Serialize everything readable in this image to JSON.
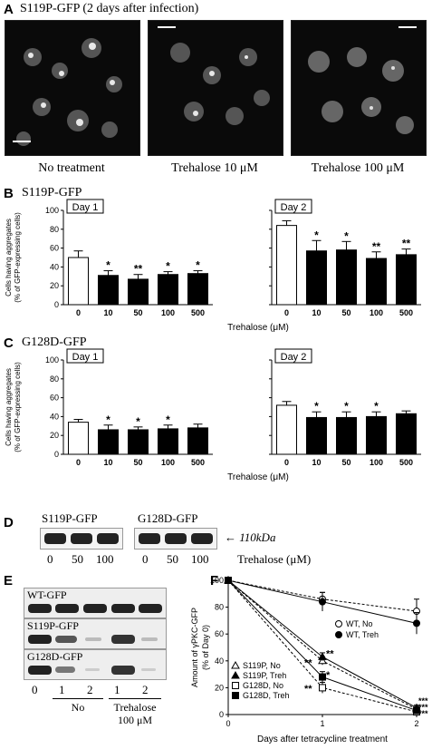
{
  "panelA": {
    "label": "A",
    "title": "S119P-GFP (2 days after infection)",
    "captions": [
      "No treatment",
      "Trehalose 10 μM",
      "Trehalose 100 μM"
    ]
  },
  "panelB": {
    "label": "B",
    "title": "S119P-GFP",
    "charts": [
      {
        "box": "Day 1",
        "categories": [
          "0",
          "10",
          "50",
          "100",
          "500"
        ],
        "values": [
          50,
          31,
          27,
          32,
          33
        ],
        "errors": [
          7,
          5,
          5,
          3,
          3
        ],
        "sig": [
          "",
          "*",
          "**",
          "*",
          "*"
        ]
      },
      {
        "box": "Day 2",
        "categories": [
          "0",
          "10",
          "50",
          "100",
          "500"
        ],
        "values": [
          84,
          57,
          58,
          49,
          53
        ],
        "errors": [
          5,
          11,
          9,
          7,
          6
        ],
        "sig": [
          "",
          "*",
          "*",
          "**",
          "**"
        ]
      }
    ],
    "ylabel1": "Cells having aggregates",
    "ylabel2": "(% of GFP-expressing cells)",
    "xlabel": "Trehalose (μM)",
    "yticks": [
      "0",
      "20",
      "40",
      "60",
      "80",
      "100"
    ]
  },
  "panelC": {
    "label": "C",
    "title": "G128D-GFP",
    "charts": [
      {
        "box": "Day 1",
        "categories": [
          "0",
          "10",
          "50",
          "100",
          "500"
        ],
        "values": [
          34,
          26,
          26,
          27,
          28
        ],
        "errors": [
          3,
          5,
          3,
          4,
          4
        ],
        "sig": [
          "",
          "*",
          "*",
          "*",
          ""
        ]
      },
      {
        "box": "Day 2",
        "categories": [
          "0",
          "10",
          "50",
          "100",
          "500"
        ],
        "values": [
          52,
          39,
          39,
          40,
          43
        ],
        "errors": [
          4,
          6,
          6,
          5,
          3
        ],
        "sig": [
          "",
          "*",
          "*",
          "*",
          ""
        ]
      }
    ],
    "ylabel1": "Cells having aggregates",
    "ylabel2": "(% of GFP-expressing cells)",
    "xlabel": "Trehalose (μM)",
    "yticks": [
      "0",
      "20",
      "40",
      "60",
      "80",
      "100"
    ]
  },
  "panelD": {
    "label": "D",
    "blots": [
      "S119P-GFP",
      "G128D-GFP"
    ],
    "arrow": "← 110kDa",
    "lanes": [
      "0",
      "50",
      "100",
      "0",
      "50",
      "100"
    ],
    "xlabel": "Trehalose (μM)"
  },
  "panelE": {
    "label": "E",
    "blots": [
      "WT-GFP",
      "S119P-GFP",
      "G128D-GFP"
    ],
    "lanes": [
      "0",
      "1",
      "2",
      "1",
      "2"
    ],
    "groupNo": "No",
    "groupTreh1": "Trehalose",
    "groupTreh2": "100 μM"
  },
  "panelF": {
    "label": "F",
    "ylabel1": "Amount of γPKC-GFP",
    "ylabel2": "(% of Day 0)",
    "xlabel": "Days after tetracycline treatment",
    "yticks": [
      "0",
      "20",
      "40",
      "60",
      "80",
      "100"
    ],
    "xticks": [
      "0",
      "1",
      "2"
    ],
    "legendRight": [
      "WT, No",
      "WT, Treh"
    ],
    "legendLeft": [
      "S119P, No",
      "S119P, Treh",
      "G128D, No",
      "G128D, Treh"
    ],
    "chart_data": {
      "type": "line",
      "x": [
        0,
        1,
        2
      ],
      "ylim": [
        0,
        100
      ],
      "series": [
        {
          "name": "WT, No",
          "values": [
            100,
            86,
            77
          ]
        },
        {
          "name": "WT, Treh",
          "values": [
            100,
            84,
            68
          ]
        },
        {
          "name": "S119P, No",
          "values": [
            100,
            40,
            4
          ]
        },
        {
          "name": "S119P, Treh",
          "values": [
            100,
            43,
            5
          ]
        },
        {
          "name": "G128D, No",
          "values": [
            100,
            20,
            2
          ]
        },
        {
          "name": "G128D, Treh",
          "values": [
            100,
            28,
            3
          ]
        }
      ]
    }
  }
}
